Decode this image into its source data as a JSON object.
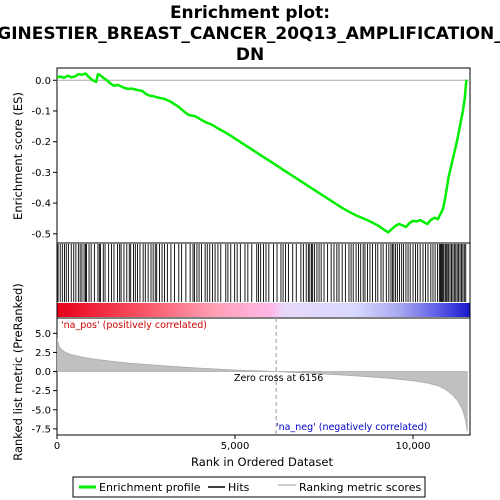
{
  "chart_data": {
    "type": "line",
    "title_lines": [
      "Enrichment plot:",
      "GINESTIER_BREAST_CANCER_20Q13_AMPLIFICATION_",
      "DN"
    ],
    "xlabel": "Rank in Ordered Dataset",
    "xlim": [
      0,
      11600
    ],
    "x_ticks": [
      0,
      5000,
      10000
    ],
    "x_tick_labels": [
      "0",
      "5,000",
      "10,000"
    ],
    "es_panel": {
      "ylabel": "Enrichment score (ES)",
      "ylim": [
        -0.53,
        0.04
      ],
      "y_ticks": [
        0.0,
        -0.1,
        -0.2,
        -0.3,
        -0.4,
        -0.5
      ],
      "y_tick_labels": [
        "0.0",
        "-0.1",
        "-0.2",
        "-0.3",
        "-0.4",
        "-0.5"
      ],
      "color": "#00ee00",
      "x": [
        0,
        100,
        200,
        300,
        400,
        500,
        600,
        700,
        800,
        900,
        1000,
        1100,
        1150,
        1200,
        1300,
        1400,
        1500,
        1600,
        1700,
        1800,
        1900,
        2000,
        2100,
        2200,
        2300,
        2400,
        2500,
        2600,
        2700,
        2800,
        2900,
        3000,
        3100,
        3200,
        3300,
        3400,
        3500,
        3600,
        3700,
        3800,
        3900,
        4000,
        4100,
        4200,
        4300,
        4400,
        4500,
        4600,
        4700,
        4800,
        4900,
        5000,
        5200,
        5400,
        5600,
        5800,
        6000,
        6200,
        6400,
        6600,
        6800,
        7000,
        7200,
        7400,
        7600,
        7800,
        8000,
        8200,
        8400,
        8600,
        8800,
        9000,
        9100,
        9200,
        9300,
        9350,
        9400,
        9500,
        9600,
        9700,
        9800,
        9900,
        10000,
        10100,
        10200,
        10300,
        10400,
        10500,
        10600,
        10700,
        10750,
        10800,
        10850,
        10900,
        10950,
        11000,
        11050,
        11100,
        11150,
        11200,
        11250,
        11300,
        11350,
        11400,
        11450,
        11500
      ],
      "y": [
        0.01,
        0.012,
        0.008,
        0.015,
        0.01,
        0.012,
        0.02,
        0.018,
        0.022,
        0.01,
        0.0,
        -0.005,
        0.02,
        0.018,
        0.008,
        0.0,
        -0.01,
        -0.018,
        -0.015,
        -0.02,
        -0.025,
        -0.028,
        -0.027,
        -0.03,
        -0.033,
        -0.035,
        -0.045,
        -0.05,
        -0.052,
        -0.055,
        -0.058,
        -0.06,
        -0.065,
        -0.07,
        -0.078,
        -0.085,
        -0.095,
        -0.105,
        -0.113,
        -0.115,
        -0.118,
        -0.125,
        -0.132,
        -0.138,
        -0.142,
        -0.148,
        -0.155,
        -0.162,
        -0.168,
        -0.175,
        -0.182,
        -0.19,
        -0.205,
        -0.22,
        -0.235,
        -0.25,
        -0.265,
        -0.28,
        -0.295,
        -0.31,
        -0.325,
        -0.34,
        -0.355,
        -0.37,
        -0.385,
        -0.4,
        -0.415,
        -0.428,
        -0.44,
        -0.45,
        -0.46,
        -0.472,
        -0.48,
        -0.488,
        -0.495,
        -0.49,
        -0.485,
        -0.475,
        -0.468,
        -0.472,
        -0.478,
        -0.465,
        -0.458,
        -0.46,
        -0.455,
        -0.462,
        -0.468,
        -0.455,
        -0.448,
        -0.452,
        -0.44,
        -0.43,
        -0.415,
        -0.385,
        -0.35,
        -0.315,
        -0.29,
        -0.265,
        -0.24,
        -0.215,
        -0.19,
        -0.16,
        -0.13,
        -0.1,
        -0.06,
        0.002
      ]
    },
    "hits_panel": {
      "hits": [
        30,
        90,
        150,
        210,
        260,
        320,
        400,
        470,
        530,
        600,
        650,
        700,
        760,
        800,
        830,
        900,
        960,
        1050,
        1150,
        1190,
        1220,
        1300,
        1350,
        1450,
        1530,
        1600,
        1700,
        1760,
        1800,
        1880,
        1960,
        2030,
        2070,
        2150,
        2200,
        2260,
        2330,
        2420,
        2480,
        2560,
        2640,
        2700,
        2760,
        2800,
        2880,
        2950,
        3020,
        3100,
        3200,
        3300,
        3420,
        3500,
        3620,
        3740,
        3820,
        3860,
        3930,
        3990,
        4060,
        4160,
        4220,
        4290,
        4370,
        4440,
        4520,
        4600,
        4740,
        4800,
        4880,
        4990,
        5060,
        5150,
        5280,
        5360,
        5470,
        5610,
        5660,
        5720,
        5800,
        5870,
        5950,
        6080,
        6180,
        6290,
        6350,
        6420,
        6500,
        6620,
        6720,
        6850,
        6920,
        7000,
        7060,
        7100,
        7150,
        7180,
        7230,
        7300,
        7360,
        7420,
        7500,
        7600,
        7700,
        7780,
        7860,
        7920,
        8010,
        8100,
        8200,
        8260,
        8320,
        8400,
        8470,
        8530,
        8600,
        8650,
        8720,
        8790,
        8860,
        8950,
        9010,
        9100,
        9160,
        9250,
        9320,
        9380,
        9420,
        9460,
        9510,
        9560,
        9620,
        9680,
        9730,
        9800,
        9860,
        9920,
        10000,
        10070,
        10130,
        10200,
        10280,
        10350,
        10420,
        10500,
        10560,
        10620,
        10690,
        10740,
        10770,
        10800,
        10830,
        10860,
        10900,
        10930,
        10960,
        11000,
        11040,
        11080,
        11120,
        11160,
        11200,
        11240,
        11280,
        11320,
        11360,
        11400,
        11440,
        11480
      ],
      "colorbar_stops": [
        "#e8001a",
        "#f85a6a",
        "#ff9fb5",
        "#ffb8e8",
        "#e8d8f8",
        "#d8d8ff",
        "#a8a8f0",
        "#6060e8",
        "#1a1acc"
      ]
    },
    "metric_panel": {
      "ylabel": "Ranked list metric (PreRanked)",
      "ylim": [
        -8.3,
        7.0
      ],
      "y_ticks": [
        5.0,
        2.5,
        0.0,
        -2.5,
        -5.0,
        -7.5
      ],
      "y_tick_labels": [
        "5.0",
        "2.5",
        "0.0",
        "-2.5",
        "-5.0",
        "-7.5"
      ],
      "x": [
        0,
        50,
        100,
        200,
        400,
        700,
        1000,
        1500,
        2000,
        3000,
        4000,
        5000,
        6156,
        7000,
        8000,
        9000,
        9500,
        10000,
        10400,
        10700,
        10900,
        11100,
        11250,
        11350,
        11420,
        11480,
        11520
      ],
      "y": [
        4.3,
        3.4,
        3.0,
        2.6,
        2.2,
        1.9,
        1.65,
        1.35,
        1.1,
        0.75,
        0.45,
        0.2,
        0.0,
        -0.2,
        -0.45,
        -0.75,
        -0.95,
        -1.2,
        -1.5,
        -1.85,
        -2.3,
        -3.0,
        -3.8,
        -4.6,
        -5.4,
        -6.5,
        -7.8
      ],
      "fill_color": "#c0c0c0"
    },
    "annotations": {
      "pos_label": "'na_pos' (positively correlated)",
      "neg_label": "'na_neg' (negatively correlated)",
      "zero_cross": "Zero cross at 6156",
      "zero_cross_x": 6156,
      "pos_color": "#cc0000",
      "neg_color": "#0000cc"
    },
    "legend": {
      "placement": "bottom",
      "items": [
        {
          "label": "Enrichment profile",
          "kind": "line",
          "color": "#00ee00"
        },
        {
          "label": "Hits",
          "kind": "line",
          "color": "#000000"
        },
        {
          "label": "Ranking metric scores",
          "kind": "line",
          "color": "#c0c0c0"
        }
      ]
    }
  }
}
